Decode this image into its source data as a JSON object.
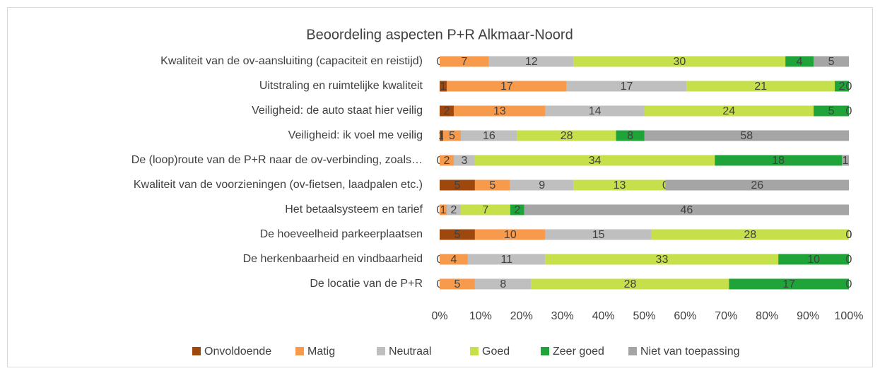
{
  "chart_data": {
    "type": "bar",
    "orientation": "horizontal",
    "stacking": "percent",
    "title": "Beoordeling aspecten P+R Alkmaar-Noord",
    "categories": [
      "Kwaliteit van de ov-aansluiting (capaciteit en reistijd)",
      "Uitstraling en ruimtelijke kwaliteit",
      "Veiligheid: de auto staat hier veilig",
      "Veiligheid: ik voel me veilig",
      "De (loop)route van de P+R naar de ov-verbinding, zoals…",
      "Kwaliteit van de voorzieningen (ov-fietsen, laadpalen etc.)",
      "Het betaalsysteem en tarief",
      "De hoeveelheid parkeerplaatsen",
      "De herkenbaarheid en vindbaarheid",
      "De locatie van de P+R"
    ],
    "series": [
      {
        "name": "Onvoldoende",
        "color": "#9e480e",
        "values": [
          0,
          1,
          2,
          1,
          0,
          5,
          0,
          5,
          0,
          0
        ]
      },
      {
        "name": "Matig",
        "color": "#f79a4c",
        "values": [
          7,
          17,
          13,
          5,
          2,
          5,
          1,
          10,
          4,
          5
        ]
      },
      {
        "name": "Neutraal",
        "color": "#bfbfbf",
        "values": [
          12,
          17,
          14,
          16,
          3,
          9,
          2,
          15,
          11,
          8
        ]
      },
      {
        "name": "Goed",
        "color": "#c6e04b",
        "values": [
          30,
          21,
          24,
          28,
          34,
          13,
          7,
          28,
          33,
          28
        ]
      },
      {
        "name": "Zeer goed",
        "color": "#1fa43a",
        "values": [
          4,
          2,
          5,
          8,
          18,
          0,
          2,
          0,
          10,
          17
        ]
      },
      {
        "name": "Niet van toepassing",
        "color": "#a5a5a5",
        "values": [
          5,
          0,
          0,
          58,
          1,
          26,
          46,
          0,
          0,
          0
        ]
      }
    ],
    "xlim": [
      0,
      100
    ],
    "xticks": [
      {
        "value": 0,
        "label": "0%"
      },
      {
        "value": 10,
        "label": "10%"
      },
      {
        "value": 20,
        "label": "20%"
      },
      {
        "value": 30,
        "label": "30%"
      },
      {
        "value": 40,
        "label": "40%"
      },
      {
        "value": 50,
        "label": "50%"
      },
      {
        "value": 60,
        "label": "60%"
      },
      {
        "value": 70,
        "label": "70%"
      },
      {
        "value": 80,
        "label": "80%"
      },
      {
        "value": 90,
        "label": "90%"
      },
      {
        "value": 100,
        "label": "100%"
      }
    ],
    "legend": "bottom"
  }
}
